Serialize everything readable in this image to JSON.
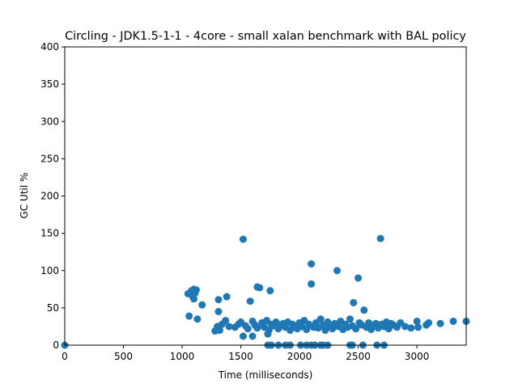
{
  "chart_data": {
    "type": "scatter",
    "title": "Circling - JDK1.5-1-1 - 4core -  small xalan benchmark with BAL policy",
    "xlabel": "Time (milliseconds)",
    "ylabel": "GC Util %",
    "xlim": [
      0,
      3420
    ],
    "ylim": [
      0,
      400
    ],
    "xticks": [
      0,
      500,
      1000,
      1500,
      2000,
      2500,
      3000
    ],
    "yticks": [
      0,
      50,
      100,
      150,
      200,
      250,
      300,
      350,
      400
    ],
    "grid": false,
    "marker_color": "#1f77b4",
    "points": [
      [
        0,
        0
      ],
      [
        1050,
        69
      ],
      [
        1080,
        73
      ],
      [
        1100,
        75
      ],
      [
        1110,
        70
      ],
      [
        1120,
        74
      ],
      [
        1100,
        62
      ],
      [
        1090,
        65
      ],
      [
        1060,
        39
      ],
      [
        1130,
        35
      ],
      [
        1170,
        54
      ],
      [
        1310,
        61
      ],
      [
        1380,
        65
      ],
      [
        1310,
        45
      ],
      [
        1300,
        25
      ],
      [
        1340,
        28
      ],
      [
        1280,
        19
      ],
      [
        1320,
        20
      ],
      [
        1370,
        33
      ],
      [
        1400,
        25
      ],
      [
        1450,
        24
      ],
      [
        1520,
        142
      ],
      [
        1580,
        59
      ],
      [
        1660,
        77
      ],
      [
        1640,
        78
      ],
      [
        1750,
        73
      ],
      [
        1520,
        12
      ],
      [
        1600,
        12
      ],
      [
        1730,
        15
      ],
      [
        1480,
        28
      ],
      [
        1500,
        31
      ],
      [
        1540,
        26
      ],
      [
        1560,
        22
      ],
      [
        1600,
        32
      ],
      [
        1620,
        27
      ],
      [
        1640,
        23
      ],
      [
        1680,
        30
      ],
      [
        1700,
        24
      ],
      [
        1720,
        33
      ],
      [
        1740,
        20
      ],
      [
        1760,
        28
      ],
      [
        1780,
        26
      ],
      [
        1800,
        31
      ],
      [
        1820,
        22
      ],
      [
        1840,
        27
      ],
      [
        1860,
        29
      ],
      [
        1880,
        24
      ],
      [
        1900,
        31
      ],
      [
        1920,
        20
      ],
      [
        1940,
        28
      ],
      [
        1960,
        26
      ],
      [
        1980,
        22
      ],
      [
        2000,
        30
      ],
      [
        2020,
        25
      ],
      [
        2040,
        33
      ],
      [
        2060,
        21
      ],
      [
        2080,
        28
      ],
      [
        2100,
        109
      ],
      [
        2100,
        82
      ],
      [
        2120,
        24
      ],
      [
        2140,
        30
      ],
      [
        2160,
        23
      ],
      [
        2180,
        35
      ],
      [
        2200,
        27
      ],
      [
        2220,
        20
      ],
      [
        2240,
        31
      ],
      [
        2260,
        26
      ],
      [
        2280,
        22
      ],
      [
        2300,
        29
      ],
      [
        2320,
        100
      ],
      [
        2330,
        25
      ],
      [
        2350,
        32
      ],
      [
        2370,
        21
      ],
      [
        2390,
        28
      ],
      [
        2410,
        24
      ],
      [
        2430,
        35
      ],
      [
        2450,
        26
      ],
      [
        2460,
        57
      ],
      [
        2480,
        22
      ],
      [
        2500,
        90
      ],
      [
        2510,
        30
      ],
      [
        2530,
        27
      ],
      [
        2550,
        47
      ],
      [
        2570,
        24
      ],
      [
        2590,
        30
      ],
      [
        2610,
        21
      ],
      [
        2630,
        26
      ],
      [
        2650,
        29
      ],
      [
        2670,
        23
      ],
      [
        2690,
        143
      ],
      [
        2700,
        28
      ],
      [
        2720,
        25
      ],
      [
        2740,
        31
      ],
      [
        2760,
        22
      ],
      [
        2780,
        29
      ],
      [
        2800,
        27
      ],
      [
        2830,
        24
      ],
      [
        2860,
        30
      ],
      [
        2900,
        25
      ],
      [
        2950,
        23
      ],
      [
        3000,
        32
      ],
      [
        3010,
        24
      ],
      [
        3080,
        27
      ],
      [
        3100,
        30
      ],
      [
        3200,
        29
      ],
      [
        3310,
        32
      ],
      [
        3420,
        32
      ],
      [
        1730,
        0
      ],
      [
        1760,
        0
      ],
      [
        1820,
        0
      ],
      [
        1880,
        0
      ],
      [
        1920,
        0
      ],
      [
        2010,
        0
      ],
      [
        2060,
        0
      ],
      [
        2100,
        0
      ],
      [
        2130,
        0
      ],
      [
        2180,
        0
      ],
      [
        2200,
        0
      ],
      [
        2240,
        0
      ],
      [
        2430,
        0
      ],
      [
        2450,
        0
      ],
      [
        2540,
        0
      ],
      [
        2660,
        0
      ],
      [
        2720,
        0
      ]
    ]
  }
}
